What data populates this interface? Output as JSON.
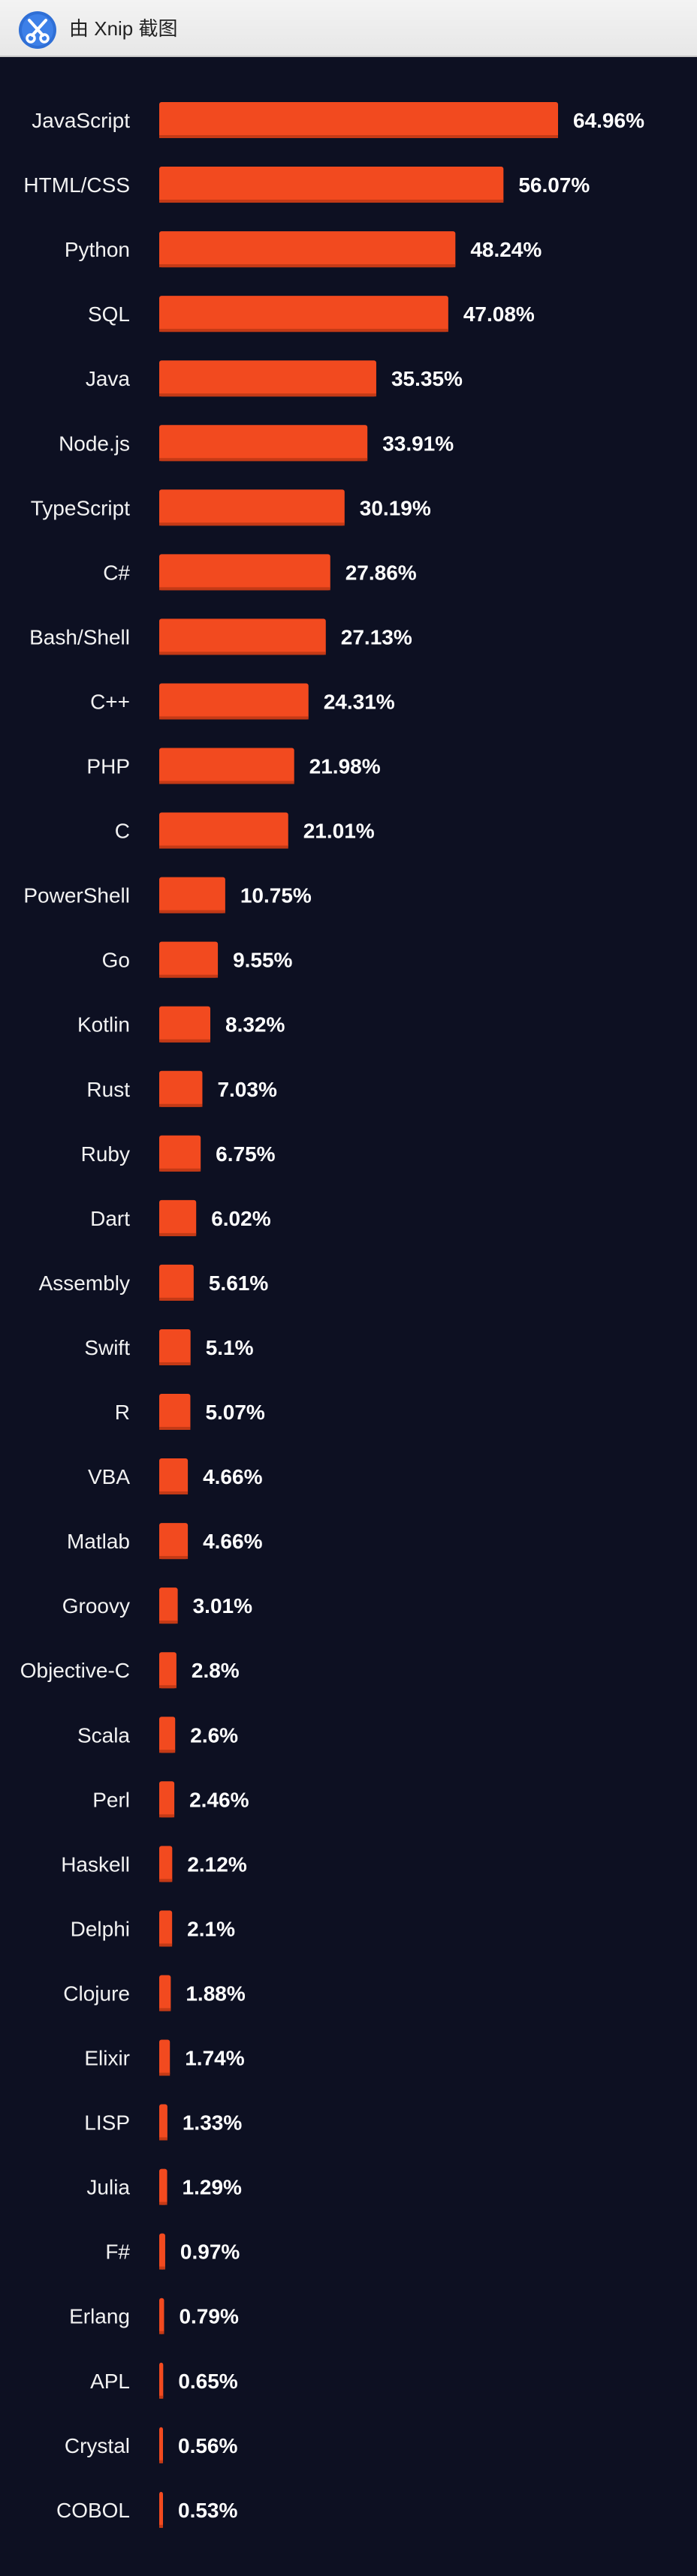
{
  "window": {
    "title": "由 Xnip 截图",
    "icon": "scissors-icon"
  },
  "colors": {
    "background": "#0d1022",
    "bar": "#f24a1f",
    "text": "#ffffff"
  },
  "chart_data": {
    "type": "bar",
    "orientation": "horizontal",
    "title": "",
    "xlabel": "",
    "ylabel": "",
    "xlim": [
      0,
      100
    ],
    "grid": false,
    "value_unit": "%",
    "categories": [
      "JavaScript",
      "HTML/CSS",
      "Python",
      "SQL",
      "Java",
      "Node.js",
      "TypeScript",
      "C#",
      "Bash/Shell",
      "C++",
      "PHP",
      "C",
      "PowerShell",
      "Go",
      "Kotlin",
      "Rust",
      "Ruby",
      "Dart",
      "Assembly",
      "Swift",
      "R",
      "VBA",
      "Matlab",
      "Groovy",
      "Objective-C",
      "Scala",
      "Perl",
      "Haskell",
      "Delphi",
      "Clojure",
      "Elixir",
      "LISP",
      "Julia",
      "F#",
      "Erlang",
      "APL",
      "Crystal",
      "COBOL"
    ],
    "values": [
      64.96,
      56.07,
      48.24,
      47.08,
      35.35,
      33.91,
      30.19,
      27.86,
      27.13,
      24.31,
      21.98,
      21.01,
      10.75,
      9.55,
      8.32,
      7.03,
      6.75,
      6.02,
      5.61,
      5.1,
      5.07,
      4.66,
      4.66,
      3.01,
      2.8,
      2.6,
      2.46,
      2.12,
      2.1,
      1.88,
      1.74,
      1.33,
      1.29,
      0.97,
      0.79,
      0.65,
      0.56,
      0.53
    ],
    "value_labels": [
      "64.96%",
      "56.07%",
      "48.24%",
      "47.08%",
      "35.35%",
      "33.91%",
      "30.19%",
      "27.86%",
      "27.13%",
      "24.31%",
      "21.98%",
      "21.01%",
      "10.75%",
      "9.55%",
      "8.32%",
      "7.03%",
      "6.75%",
      "6.02%",
      "5.61%",
      "5.1%",
      "5.07%",
      "4.66%",
      "4.66%",
      "3.01%",
      "2.8%",
      "2.6%",
      "2.46%",
      "2.12%",
      "2.1%",
      "1.88%",
      "1.74%",
      "1.33%",
      "1.29%",
      "0.97%",
      "0.79%",
      "0.65%",
      "0.56%",
      "0.53%"
    ]
  }
}
